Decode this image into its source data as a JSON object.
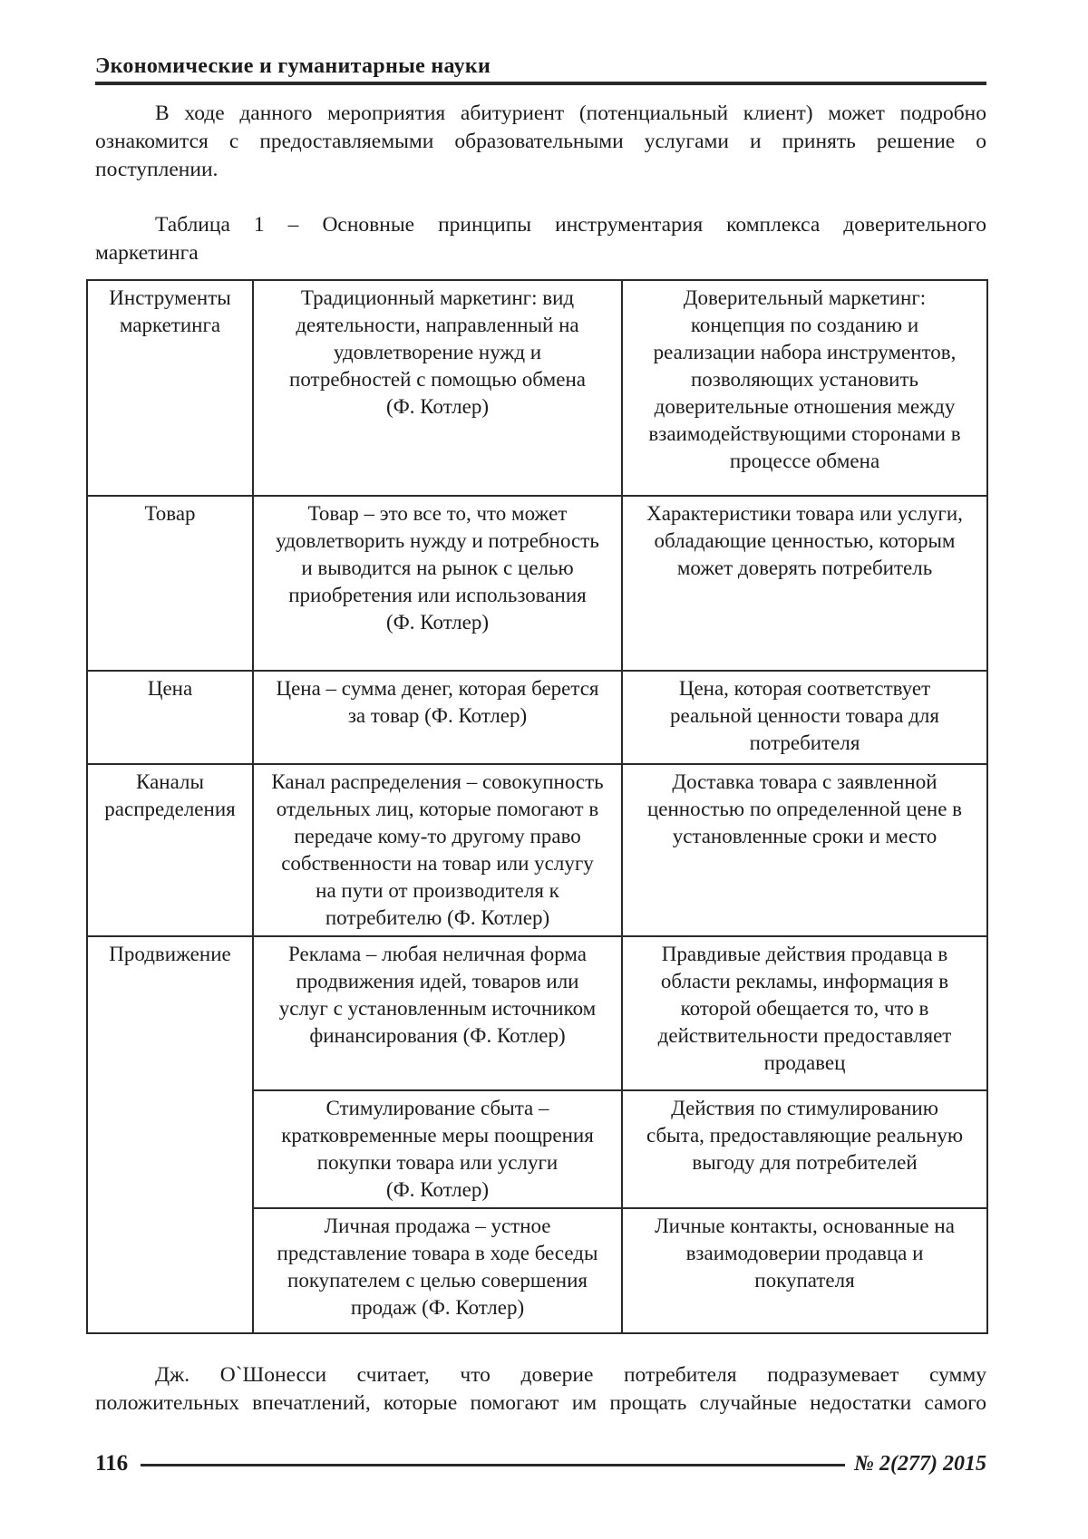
{
  "page": {
    "running_head": "Экономические и гуманитарные науки",
    "intro_lines": [
      "В ходе данного мероприятия абитуриент (потенциальный клиент) может подробно",
      "ознакомится с предоставляемыми образовательными услугами и принять решение о",
      "поступлении."
    ],
    "closing_lines": [
      "Дж. О`Шонесси считает, что доверие потребителя подразумевает сумму",
      "положительных впечатлений, которые помогают им прощать случайные недостатки самого"
    ],
    "footer": {
      "page_number": "116",
      "issue": "№ 2(277) 2015"
    }
  },
  "table": {
    "caption_lines": [
      "Таблица 1 – Основные принципы инструментария комплекса доверительного",
      "маркетинга"
    ],
    "header": {
      "tool": "Инструменты\nмаркетинга",
      "traditional": "Традиционный маркетинг: вид\nдеятельности, направленный на\nудовлетворение нужд и\nпотребностей с помощью обмена\n(Ф. Котлер)",
      "trust": "Доверительный маркетинг:\nконцепция по созданию и\nреализации набора инструментов,\nпозволяющих установить\nдоверительные отношения между\nвзаимодействующими сторонами в\nпроцессе обмена"
    },
    "rows": [
      {
        "tool": "Товар",
        "traditional": "Товар – это все то, что может\nудовлетворить нужду и потребность\nи выводится на рынок с целью\nприобретения или использования\n(Ф. Котлер)",
        "trust": "Характеристики товара или услуги,\nобладающие ценностью, которым\nможет доверять потребитель"
      },
      {
        "tool": "Цена",
        "traditional": "Цена – сумма денег, которая берется\nза товар (Ф. Котлер)",
        "trust": "Цена, которая соответствует\nреальной ценности товара для\nпотребителя"
      },
      {
        "tool": "Каналы\nраспределения",
        "traditional": "Канал распределения – совокупность\nотдельных лиц, которые помогают в\nпередаче кому-то другому право\nсобственности на товар или услугу\nна пути от производителя к\nпотребителю (Ф. Котлер)",
        "trust": "Доставка товара с заявленной\nценностью по определенной цене в\nустановленные сроки и место"
      },
      {
        "tool": "Продвижение",
        "traditional": "Реклама – любая неличная форма\nпродвижения идей, товаров или\nуслуг с установленным источником\nфинансирования (Ф. Котлер)",
        "trust": "Правдивые действия продавца в\nобласти рекламы, информация в\nкоторой обещается то, что в\nдействительности предоставляет\nпродавец"
      },
      {
        "traditional": "Стимулирование сбыта –\nкратковременные меры поощрения\nпокупки товара или услуги\n(Ф. Котлер)",
        "trust": "Действия по стимулированию\nсбыта, предоставляющие реальную\nвыгоду для потребителей"
      },
      {
        "traditional": "Личная продажа – устное\nпредставление товара в ходе беседы\nпокупателем с целью совершения\nпродаж (Ф. Котлер)",
        "trust": "Личные контакты, основанные на\nвзаимодоверии продавца и\nпокупателя"
      }
    ]
  }
}
